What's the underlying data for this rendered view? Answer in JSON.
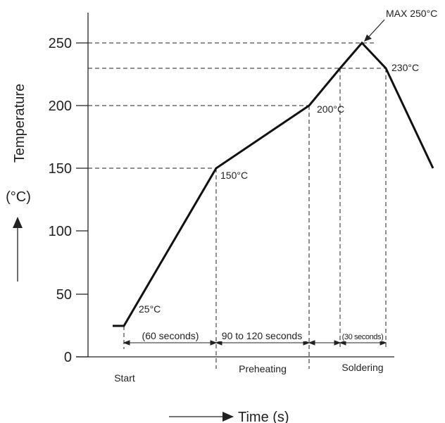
{
  "chart_data": {
    "type": "line",
    "title": "",
    "ylabel": "Temperature",
    "yunit": "(°C)",
    "xlabel": "Time (s)",
    "ylim": [
      0,
      250
    ],
    "yticks": [
      {
        "value": 0,
        "label": "0"
      },
      {
        "value": 50,
        "label": "50"
      },
      {
        "value": 100,
        "label": "100"
      },
      {
        "value": 150,
        "label": "150"
      },
      {
        "value": 200,
        "label": "200"
      },
      {
        "value": 250,
        "label": "250"
      }
    ],
    "grid": false,
    "profile_temperatures": [
      25,
      25,
      150,
      200,
      230,
      250,
      230,
      150
    ],
    "annotations": [
      {
        "id": "t25",
        "label": "25°C",
        "temperature": 25
      },
      {
        "id": "t150",
        "label": "150°C",
        "temperature": 150
      },
      {
        "id": "t200",
        "label": "200°C",
        "temperature": 200
      },
      {
        "id": "t230",
        "label": "230°C",
        "temperature": 230
      },
      {
        "id": "tmax",
        "label": "MAX 250°C",
        "temperature": 250
      }
    ],
    "durations": [
      "(60 seconds)",
      "90 to 120 seconds",
      "(30 seconds)"
    ],
    "phases": [
      "Start",
      "Preheating",
      "Soldering"
    ]
  }
}
